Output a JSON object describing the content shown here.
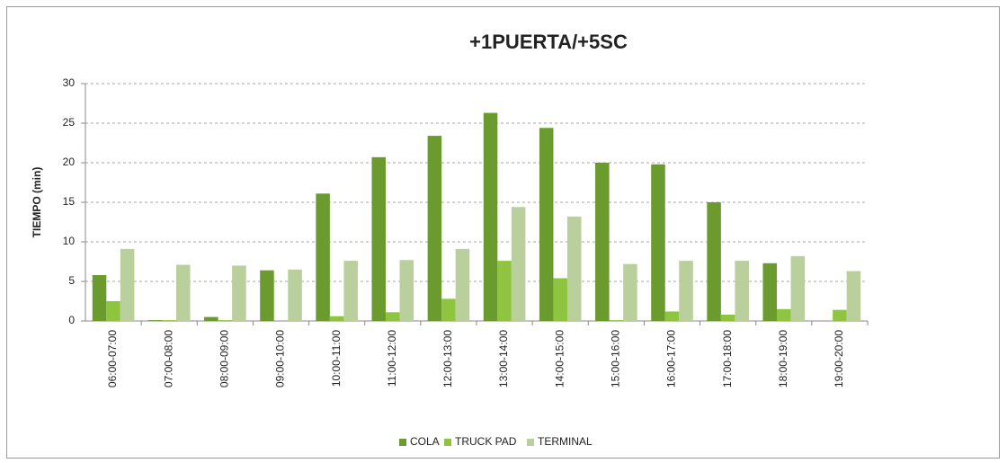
{
  "chart_data": {
    "type": "bar",
    "title": "+1PUERTA/+5SC",
    "y_label": "TIEMPO (min)",
    "categories": [
      "06:00-07:00",
      "07:00-08:00",
      "08:00-09:00",
      "09:00-10:00",
      "10:00-11:00",
      "11:00-12:00",
      "12:00-13:00",
      "13:00-14:00",
      "14:00-15:00",
      "15:00-16:00",
      "16:00-17:00",
      "17:00-18:00",
      "18:00-19:00",
      "19:00-20:00"
    ],
    "series": [
      {
        "name": "COLA",
        "color": "#6b9a2f",
        "values": [
          5.8,
          0.1,
          0.5,
          6.4,
          16.1,
          20.7,
          23.4,
          26.3,
          24.4,
          20.0,
          19.8,
          15.0,
          7.3,
          0
        ]
      },
      {
        "name": "TRUCK PAD",
        "color": "#8fc440",
        "values": [
          2.5,
          0.1,
          0.1,
          0,
          0.6,
          1.1,
          2.8,
          7.6,
          5.4,
          0.1,
          1.2,
          0.8,
          1.5,
          1.4
        ]
      },
      {
        "name": "TERMINAL",
        "color": "#b9cf9c",
        "values": [
          9.1,
          7.1,
          7.0,
          6.5,
          7.6,
          7.7,
          9.1,
          14.4,
          13.2,
          7.2,
          7.6,
          7.6,
          8.2,
          6.3
        ]
      }
    ],
    "ylim": [
      0,
      30
    ],
    "yticks": [
      0,
      5,
      10,
      15,
      20,
      25,
      30
    ],
    "grid": true,
    "legend": "bottom"
  }
}
